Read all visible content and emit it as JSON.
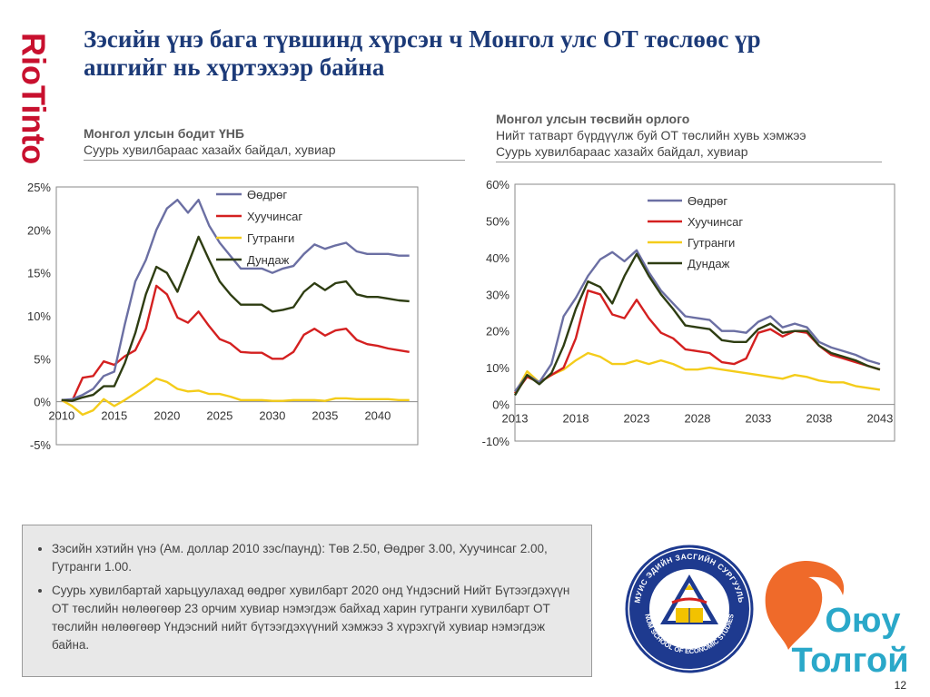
{
  "brand": {
    "riotinto": "RioTinto",
    "riotinto_color": "#c8102e"
  },
  "title": "Зэсийн үнэ бага түвшинд хүрсэн ч Монгол улс ОТ төслөөс үр ашгийг нь хүртэхээр байна",
  "left_header": {
    "title": "Монгол улсын бодит ҮНБ",
    "subtitle": "Суурь хувилбараас хазайх  байдал, хувиар"
  },
  "right_header": {
    "title": "Монгол улсын төсвийн орлого",
    "subtitle1": "Нийт татварт бүрдүүлж буй ОТ төслийн хувь хэмжээ",
    "subtitle2": "Суурь хувилбараас хазайх байдал, хувиар"
  },
  "chart_data": [
    {
      "type": "line",
      "title": "Монгол улсын бодит ҮНБ",
      "subtitle": "Суурь хувилбараас хазайх  байдал, хувиар",
      "x": [
        2010,
        2011,
        2012,
        2013,
        2014,
        2015,
        2016,
        2017,
        2018,
        2019,
        2020,
        2021,
        2022,
        2023,
        2024,
        2025,
        2026,
        2027,
        2028,
        2029,
        2030,
        2031,
        2032,
        2033,
        2034,
        2035,
        2036,
        2037,
        2038,
        2039,
        2040,
        2041,
        2042,
        2043
      ],
      "xticks": [
        2010,
        2015,
        2020,
        2025,
        2030,
        2035,
        2040
      ],
      "xtick_labels": [
        "2010",
        "2015",
        "2020",
        "2025",
        "2030",
        "2035",
        "2040"
      ],
      "xlim": [
        2009.5,
        2043.8
      ],
      "ylim": [
        -5,
        25
      ],
      "yticks": [
        -5,
        0,
        5,
        10,
        15,
        20,
        25
      ],
      "ytick_labels": [
        "-5%",
        "0%",
        "5%",
        "10%",
        "15%",
        "20%",
        "25%"
      ],
      "grid": false,
      "legend_position": "top-center",
      "series": [
        {
          "name": "Өөдрөг",
          "color": "#6b6fa3",
          "values": [
            0.2,
            0.3,
            0.8,
            1.5,
            3.0,
            3.5,
            9.0,
            14.0,
            16.5,
            20.0,
            22.5,
            23.5,
            22.0,
            23.5,
            20.5,
            18.5,
            17.0,
            15.5,
            15.5,
            15.5,
            15.0,
            15.5,
            15.8,
            17.2,
            18.3,
            17.8,
            18.2,
            18.5,
            17.5,
            17.2,
            17.2,
            17.2,
            17.0,
            17.0
          ]
        },
        {
          "name": "Хуучинсаг",
          "color": "#d42020",
          "values": [
            0.2,
            0.1,
            2.8,
            3.0,
            4.7,
            4.3,
            5.3,
            6.0,
            8.5,
            13.5,
            12.5,
            9.8,
            9.2,
            10.5,
            8.8,
            7.3,
            6.8,
            5.8,
            5.7,
            5.7,
            5.0,
            5.0,
            5.8,
            7.8,
            8.5,
            7.7,
            8.3,
            8.5,
            7.2,
            6.7,
            6.5,
            6.2,
            6.0,
            5.8
          ]
        },
        {
          "name": "Гутранги",
          "color": "#f4cc1a",
          "values": [
            0.2,
            -0.5,
            -1.5,
            -1.0,
            0.3,
            -0.5,
            0.2,
            1.0,
            1.8,
            2.7,
            2.3,
            1.5,
            1.2,
            1.3,
            0.9,
            0.9,
            0.6,
            0.2,
            0.2,
            0.2,
            0.1,
            0.1,
            0.2,
            0.2,
            0.2,
            0.1,
            0.4,
            0.4,
            0.3,
            0.3,
            0.3,
            0.3,
            0.2,
            0.2
          ]
        },
        {
          "name": "Дундаж",
          "color": "#2e3d12",
          "values": [
            0.2,
            0.1,
            0.5,
            0.8,
            1.8,
            1.8,
            4.5,
            8.0,
            12.5,
            15.7,
            15.0,
            12.8,
            16.0,
            19.2,
            16.5,
            14.0,
            12.5,
            11.3,
            11.3,
            11.3,
            10.5,
            10.7,
            11.0,
            12.8,
            13.8,
            13.0,
            13.8,
            14.0,
            12.5,
            12.2,
            12.2,
            12.0,
            11.8,
            11.7
          ]
        }
      ]
    },
    {
      "type": "line",
      "title": "Монгол улсын төсвийн орлого",
      "subtitle": "Нийт татварт бүрдүүлж буй ОТ төслийн хувь хэмжээ / Суурь хувилбараас хазайх байдал, хувиар",
      "x": [
        2013,
        2014,
        2015,
        2016,
        2017,
        2018,
        2019,
        2020,
        2021,
        2022,
        2023,
        2024,
        2025,
        2026,
        2027,
        2028,
        2029,
        2030,
        2031,
        2032,
        2033,
        2034,
        2035,
        2036,
        2037,
        2038,
        2039,
        2040,
        2041,
        2042,
        2043
      ],
      "xticks": [
        2013,
        2018,
        2023,
        2028,
        2033,
        2038,
        2043
      ],
      "xtick_labels": [
        "2013",
        "2018",
        "2023",
        "2028",
        "2033",
        "2038",
        "2043"
      ],
      "xlim": [
        2013,
        2044.2
      ],
      "ylim": [
        -10,
        60
      ],
      "yticks": [
        -10,
        0,
        10,
        20,
        30,
        40,
        50,
        60
      ],
      "ytick_labels": [
        "-10%",
        "0%",
        "10%",
        "20%",
        "30%",
        "40%",
        "50%",
        "60%"
      ],
      "grid": false,
      "legend_position": "top-right",
      "series": [
        {
          "name": "Өөдрөг",
          "color": "#6b6fa3",
          "values": [
            3.5,
            8.0,
            6.0,
            11.0,
            24.0,
            29.0,
            35.0,
            39.5,
            41.5,
            39.0,
            42.0,
            36.0,
            31.0,
            27.5,
            24.0,
            23.5,
            23.0,
            20.0,
            20.0,
            19.5,
            22.5,
            24.0,
            21.0,
            22.0,
            21.0,
            17.0,
            15.5,
            14.5,
            13.5,
            12.0,
            11.0
          ]
        },
        {
          "name": "Хуучинсаг",
          "color": "#d42020",
          "values": [
            3.0,
            7.5,
            6.0,
            8.0,
            10.0,
            18.0,
            31.0,
            30.0,
            24.5,
            23.5,
            28.5,
            23.5,
            19.5,
            18.0,
            15.0,
            14.5,
            14.0,
            11.5,
            11.0,
            12.5,
            19.5,
            20.5,
            18.5,
            20.0,
            19.5,
            16.0,
            13.5,
            12.5,
            11.5,
            10.5,
            9.5
          ]
        },
        {
          "name": "Гутранги",
          "color": "#f4cc1a",
          "values": [
            3.0,
            9.0,
            6.0,
            8.0,
            9.5,
            12.0,
            14.0,
            13.0,
            11.0,
            11.0,
            12.0,
            11.0,
            12.0,
            11.0,
            9.5,
            9.5,
            10.0,
            9.5,
            9.0,
            8.5,
            8.0,
            7.5,
            7.0,
            8.0,
            7.5,
            6.5,
            6.0,
            6.0,
            5.0,
            4.5,
            4.0
          ]
        },
        {
          "name": "Дундаж",
          "color": "#2e3d12",
          "values": [
            2.5,
            8.0,
            5.5,
            8.5,
            16.0,
            26.0,
            33.5,
            32.0,
            27.5,
            35.0,
            41.0,
            35.0,
            30.0,
            26.0,
            21.5,
            21.0,
            20.5,
            17.5,
            17.0,
            17.0,
            20.5,
            22.0,
            19.5,
            20.0,
            20.0,
            16.0,
            14.0,
            13.0,
            12.0,
            10.5,
            9.5
          ]
        }
      ]
    }
  ],
  "notes": [
    "Зэсийн хэтийн үнэ (Ам. доллар 2010 зэс/паунд): Төв 2.50, Өөдрөг 3.00, Хуучинсаг 2.00, Гутранги 1.00.",
    "Суурь хувилбартай харьцуулахад өөдрөг хувилбарт 2020 онд Үндэсний Нийт Бүтээгдэхүүн ОТ төслийн нөлөөгөөр 23 орчим хувиар нэмэгдэж байхад харин гутранги хувилбарт ОТ төслийн нөлөөгөөр Үндэсний нийт бүтээгдэхүүний хэмжээ 3 хүрэхгүй хувиар нэмэгдэж байна."
  ],
  "badge": {
    "outer_text": "МУИС ЭДИЙН ЗАСГИЙН СУРГУУЛЬ • NUM SCHOOL OF ECONOMIC STUDIES",
    "colors": {
      "navy": "#1e3a8f",
      "gold": "#f2c200",
      "red": "#d42020"
    }
  },
  "oyu_logo": {
    "line1": "Оюу",
    "line2": "Толгой",
    "orange": "#ef6a2a",
    "teal": "#2aa8c9"
  },
  "page_number": "12"
}
